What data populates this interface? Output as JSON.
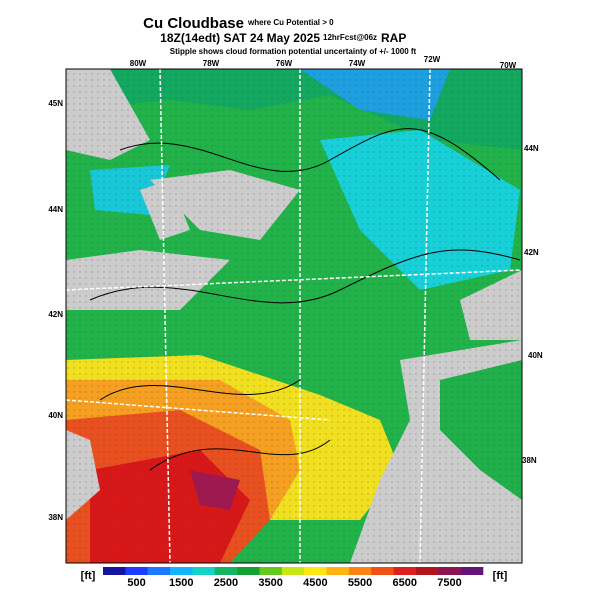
{
  "header": {
    "title": "Cu Cloudbase",
    "title_note": "where Cu Potential > 0",
    "valid_time": "18Z(14edt) SAT 24 May 2025",
    "forecast": "12hrFcst@06z",
    "model": "RAP",
    "subtitle": "Stipple shows cloud formation potential uncertainty of +/- 1000 ft"
  },
  "map": {
    "top_labels": [
      "80W",
      "78W",
      "76W",
      "74W",
      "72W",
      "70W"
    ],
    "left_labels": [
      "45N",
      "44N",
      "42N",
      "40N",
      "38N"
    ],
    "right_labels": [
      "44N",
      "42N",
      "40N",
      "38N"
    ]
  },
  "colorbar": {
    "unit": "[ft]",
    "labels": [
      500,
      1500,
      2500,
      3500,
      4500,
      5500,
      6500,
      7500
    ]
  }
}
